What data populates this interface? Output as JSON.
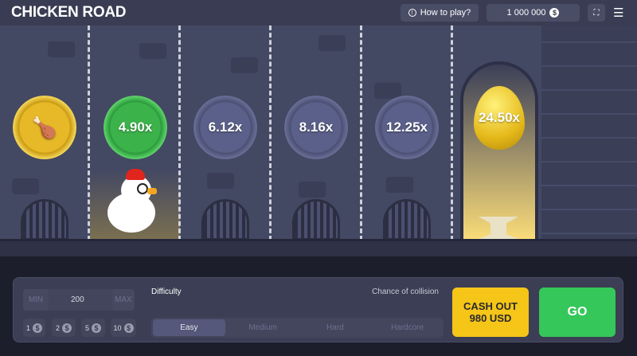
{
  "header": {
    "logo": "CHICKEN ROAD",
    "how_to_play": "How to play?",
    "balance": "1 000 000",
    "currency_icon": "dollar-icon"
  },
  "lanes": [
    {
      "type": "collected-coin",
      "label": ""
    },
    {
      "type": "current",
      "label": "4.90x"
    },
    {
      "type": "upcoming",
      "label": "6.12x"
    },
    {
      "type": "upcoming",
      "label": "8.16x"
    },
    {
      "type": "upcoming",
      "label": "12.25x"
    },
    {
      "type": "golden-egg",
      "label": "24.50x"
    }
  ],
  "controls": {
    "min_label": "MIN",
    "bet_value": "200",
    "max_label": "MAX",
    "quick_bets": [
      "1",
      "2",
      "5",
      "10"
    ],
    "difficulty_label": "Difficulty",
    "collision_label": "Chance of collision",
    "difficulties": [
      "Easy",
      "Medium",
      "Hard",
      "Hardcore"
    ],
    "selected_difficulty": "Easy",
    "cashout_line1": "CASH OUT",
    "cashout_line2": "980 USD",
    "go_label": "GO"
  },
  "colors": {
    "cashout": "#f5c518",
    "go": "#35c759",
    "background": "#434863"
  }
}
